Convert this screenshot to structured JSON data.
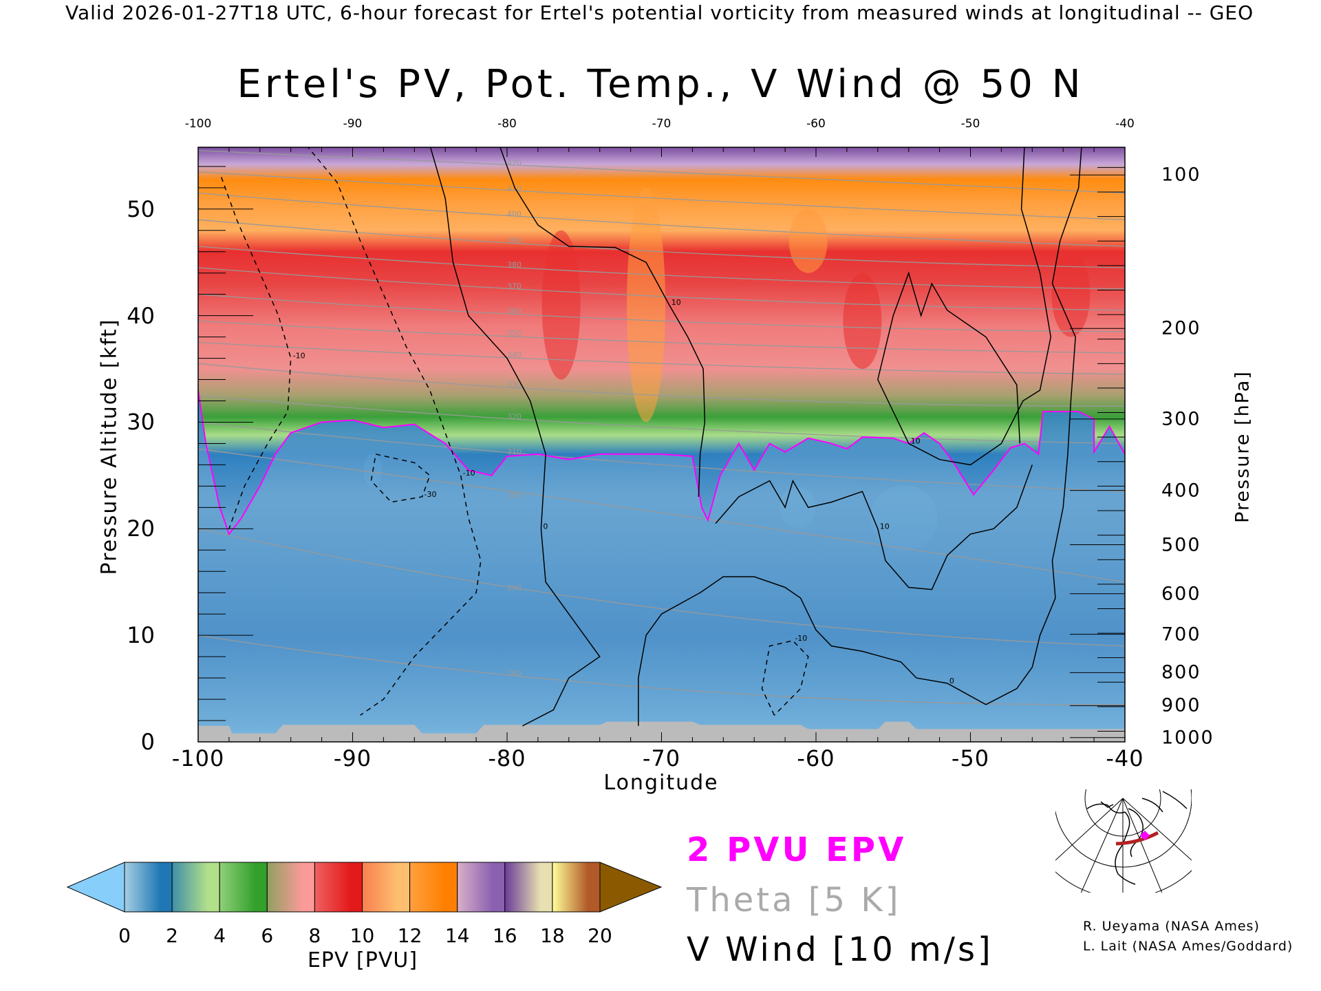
{
  "header": "Valid 2026-01-27T18 UTC, 6-hour forecast for Ertel's potential vorticity from measured winds at longitudinal -- GEO",
  "legend": {
    "pv": "2 PVU EPV",
    "theta": "Theta [5 K]",
    "wind": "V Wind [10 m/s]"
  },
  "credits": [
    "R. Ueyama (NASA Ames)",
    "L. Lait (NASA Ames/Goddard)"
  ],
  "colors": {
    "pv_line": "#ff00ff",
    "theta_line": "#999999",
    "wind_line": "#000000",
    "ground": "#bbbbbb"
  },
  "chart_data": {
    "type": "heatmap",
    "title": "Ertel's PV, Pot. Temp., V Wind @ 50 N",
    "xlabel": "Longitude",
    "ylabel": "Pressure Altitude [kft]",
    "y2label": "Pressure [hPa]",
    "xlim": [
      -100,
      -40
    ],
    "ylim": [
      0,
      55.8
    ],
    "x_ticks": [
      "-100",
      "-90",
      "-80",
      "-70",
      "-60",
      "-50",
      "-40"
    ],
    "x_tick_values": [
      -100,
      -90,
      -80,
      -70,
      -60,
      -50,
      -40
    ],
    "y_ticks": [
      "0",
      "10",
      "20",
      "30",
      "40",
      "50"
    ],
    "y_tick_values": [
      0,
      10,
      20,
      30,
      40,
      50
    ],
    "pressure_ticks": [
      {
        "label": "100",
        "kft": 53.2
      },
      {
        "label": "200",
        "kft": 38.8
      },
      {
        "label": "300",
        "kft": 30.3
      },
      {
        "label": "400",
        "kft": 23.6
      },
      {
        "label": "500",
        "kft": 18.5
      },
      {
        "label": "600",
        "kft": 13.9
      },
      {
        "label": "700",
        "kft": 10.1
      },
      {
        "label": "800",
        "kft": 6.5
      },
      {
        "label": "900",
        "kft": 3.4
      },
      {
        "label": "1000",
        "kft": 0.4
      }
    ],
    "colorbar": {
      "label": "EPV [PVU]",
      "ticks": [
        "0",
        "2",
        "4",
        "6",
        "8",
        "10",
        "12",
        "14",
        "16",
        "18",
        "20"
      ],
      "under_color": "#87cefa",
      "over_color": "#8b5a00",
      "segments": [
        [
          "#a6cee3",
          "#1f78b4"
        ],
        [
          "#3f8fa8",
          "#b2df8a"
        ],
        [
          "#8fd07a",
          "#33a02c"
        ],
        [
          "#90a060",
          "#fb9a99"
        ],
        [
          "#f06060",
          "#e31a1c"
        ],
        [
          "#f88050",
          "#fdbf6f"
        ],
        [
          "#ffa040",
          "#ff7f00"
        ],
        [
          "#d8b0c8",
          "#8a60b0"
        ],
        [
          "#6a3d9a",
          "#e8e0b0"
        ],
        [
          "#ffff99",
          "#b15928"
        ]
      ]
    },
    "epv_bands": [
      {
        "kft": 55.8,
        "color": "#7b4fa0"
      },
      {
        "kft": 54.2,
        "color": "#c8a8d8"
      },
      {
        "kft": 52.8,
        "color": "#ff8c10"
      },
      {
        "kft": 50.5,
        "color": "#ffa040"
      },
      {
        "kft": 48.0,
        "color": "#ffb060"
      },
      {
        "kft": 46.0,
        "color": "#e83030"
      },
      {
        "kft": 43.0,
        "color": "#e84545"
      },
      {
        "kft": 39.0,
        "color": "#f07c7c"
      },
      {
        "kft": 35.0,
        "color": "#f09090"
      },
      {
        "kft": 32.5,
        "color": "#a8a070"
      },
      {
        "kft": 30.5,
        "color": "#3aa03a"
      },
      {
        "kft": 28.8,
        "color": "#a8dc88"
      },
      {
        "kft": 27.0,
        "color": "#2f80c0"
      },
      {
        "kft": 20.0,
        "color": "#6aa4d0"
      },
      {
        "kft": 10.0,
        "color": "#5a98cc"
      },
      {
        "kft": 3.0,
        "color": "#4a8cc8"
      },
      {
        "kft": 0.0,
        "color": "#7ab4dc"
      }
    ],
    "pv2_line": [
      [
        -100,
        33
      ],
      [
        -99.5,
        28
      ],
      [
        -98.6,
        22
      ],
      [
        -98,
        19.5
      ],
      [
        -97.2,
        21
      ],
      [
        -96,
        24
      ],
      [
        -95,
        27
      ],
      [
        -94,
        29
      ],
      [
        -92,
        30
      ],
      [
        -90,
        30.2
      ],
      [
        -88,
        29.5
      ],
      [
        -86,
        29.8
      ],
      [
        -84,
        28
      ],
      [
        -82.5,
        25.5
      ],
      [
        -81,
        25
      ],
      [
        -80,
        26.8
      ],
      [
        -78,
        27
      ],
      [
        -76,
        26.5
      ],
      [
        -74,
        27
      ],
      [
        -70,
        27
      ],
      [
        -68,
        26.8
      ],
      [
        -67.4,
        22
      ],
      [
        -67,
        20.8
      ],
      [
        -66.2,
        25
      ],
      [
        -65,
        28
      ],
      [
        -64,
        25.5
      ],
      [
        -63,
        28
      ],
      [
        -62,
        27.2
      ],
      [
        -60.5,
        28.5
      ],
      [
        -59,
        28
      ],
      [
        -58,
        27.5
      ],
      [
        -57,
        28.6
      ],
      [
        -55,
        28.5
      ],
      [
        -54,
        28
      ],
      [
        -53,
        29
      ],
      [
        -52,
        28
      ],
      [
        -51,
        26
      ],
      [
        -49.8,
        23.2
      ],
      [
        -48.5,
        25.5
      ],
      [
        -47.4,
        27.6
      ],
      [
        -46.5,
        28
      ],
      [
        -45.6,
        27
      ],
      [
        -45.3,
        31
      ],
      [
        -43,
        31
      ],
      [
        -42,
        30.3
      ],
      [
        -42,
        27.2
      ],
      [
        -41,
        29.6
      ],
      [
        -40,
        27
      ]
    ],
    "theta_isentropes": [
      {
        "theta": 420,
        "alt": [
          55.5,
          53.5,
          51.5
        ]
      },
      {
        "theta": 410,
        "alt": [
          53.5,
          51.0,
          49.0
        ]
      },
      {
        "theta": 400,
        "alt": [
          51.5,
          48.5,
          46.5
        ]
      },
      {
        "theta": 390,
        "alt": [
          49.0,
          46.0,
          44.5
        ]
      },
      {
        "theta": 380,
        "alt": [
          46.5,
          43.8,
          42.5
        ]
      },
      {
        "theta": 370,
        "alt": [
          44.5,
          41.8,
          40.5
        ]
      },
      {
        "theta": 360,
        "alt": [
          42.0,
          39.5,
          38.5
        ]
      },
      {
        "theta": 350,
        "alt": [
          39.5,
          37.5,
          36.5
        ]
      },
      {
        "theta": 340,
        "alt": [
          37.5,
          35.5,
          34.5
        ]
      },
      {
        "theta": 330,
        "alt": [
          35.5,
          32.5,
          31.5
        ]
      },
      {
        "theta": 320,
        "alt": [
          32.5,
          29.5,
          28.0
        ]
      },
      {
        "theta": 310,
        "alt": [
          30.0,
          26.0,
          23.5
        ]
      },
      {
        "theta": 300,
        "alt": [
          27.5,
          21.5,
          15.0
        ]
      },
      {
        "theta": 290,
        "alt": [
          20.0,
          12.5,
          9.0
        ]
      },
      {
        "theta": 280,
        "alt": [
          10.0,
          5.0,
          3.5
        ]
      }
    ],
    "v_wind_contours": [
      {
        "level": 0,
        "dashed": false,
        "points": [
          [
            -85,
            56
          ],
          [
            -84,
            51
          ],
          [
            -83.5,
            45
          ],
          [
            -82.5,
            40
          ],
          [
            -80,
            36
          ],
          [
            -78.5,
            32
          ],
          [
            -77.5,
            27
          ],
          [
            -77.8,
            20
          ],
          [
            -77.5,
            15
          ],
          [
            -76,
            12
          ],
          [
            -75,
            10
          ],
          [
            -74,
            8
          ],
          [
            -76,
            6
          ],
          [
            -77,
            3
          ],
          [
            -79,
            1.5
          ]
        ]
      },
      {
        "level": 10,
        "dashed": false,
        "points": [
          [
            -80.5,
            56
          ],
          [
            -79.5,
            52
          ],
          [
            -78,
            48.5
          ],
          [
            -76,
            46.5
          ],
          [
            -73,
            46.4
          ],
          [
            -71,
            45
          ],
          [
            -69.5,
            41
          ],
          [
            -68.3,
            38
          ],
          [
            -67.3,
            35
          ],
          [
            -67.2,
            30
          ],
          [
            -67.5,
            27
          ],
          [
            -67.6,
            23
          ]
        ]
      },
      {
        "level": 0,
        "dashed": false,
        "points": [
          [
            -71.5,
            1.5
          ],
          [
            -71.5,
            6
          ],
          [
            -71,
            10
          ],
          [
            -70,
            12
          ],
          [
            -67.5,
            14
          ],
          [
            -66,
            15.5
          ],
          [
            -64,
            15.5
          ],
          [
            -62,
            14.5
          ],
          [
            -61,
            13.5
          ],
          [
            -60,
            10.5
          ],
          [
            -59,
            9
          ],
          [
            -57,
            8.5
          ],
          [
            -54.5,
            7.5
          ],
          [
            -53.5,
            6
          ],
          [
            -51.5,
            5.5
          ],
          [
            -49,
            3.5
          ],
          [
            -47,
            5
          ],
          [
            -46,
            7
          ],
          [
            -45.5,
            10
          ],
          [
            -44.5,
            13.5
          ],
          [
            -44.7,
            17
          ],
          [
            -44,
            22
          ],
          [
            -43.7,
            27
          ],
          [
            -43.5,
            32
          ],
          [
            -43.2,
            38
          ],
          [
            -44.7,
            43
          ],
          [
            -44.2,
            47
          ],
          [
            -43,
            52
          ],
          [
            -42.8,
            56
          ]
        ]
      },
      {
        "level": 10,
        "dashed": false,
        "points": [
          [
            -46.5,
            56
          ],
          [
            -46.7,
            50
          ],
          [
            -45.5,
            44
          ],
          [
            -44.8,
            38
          ],
          [
            -45.5,
            33
          ],
          [
            -46.6,
            32
          ],
          [
            -48,
            28
          ],
          [
            -50,
            26
          ],
          [
            -52,
            26.5
          ],
          [
            -54,
            28
          ],
          [
            -56,
            34
          ],
          [
            -55,
            40
          ],
          [
            -54,
            44
          ],
          [
            -53.2,
            40
          ],
          [
            -52.5,
            43
          ],
          [
            -51.5,
            40.5
          ],
          [
            -49,
            38
          ],
          [
            -47,
            33.5
          ],
          [
            -46.8,
            28
          ]
        ]
      },
      {
        "level": 10,
        "dashed": false,
        "points": [
          [
            -66.5,
            20.5
          ],
          [
            -65,
            23
          ],
          [
            -63,
            24.5
          ],
          [
            -62,
            22
          ],
          [
            -61.5,
            24.5
          ],
          [
            -60.5,
            22
          ],
          [
            -59,
            22.5
          ],
          [
            -57,
            23.5
          ],
          [
            -56,
            20
          ],
          [
            -55.5,
            17
          ],
          [
            -54,
            14.5
          ],
          [
            -52.5,
            14.3
          ],
          [
            -51.5,
            17.5
          ],
          [
            -50,
            19.5
          ],
          [
            -48.5,
            20
          ],
          [
            -47,
            22
          ],
          [
            -46,
            26
          ]
        ]
      },
      {
        "level": -10,
        "dashed": true,
        "points": [
          [
            -98.5,
            53
          ],
          [
            -97.5,
            49
          ],
          [
            -96,
            44
          ],
          [
            -94.8,
            40
          ],
          [
            -94,
            36
          ],
          [
            -94.2,
            31
          ],
          [
            -95.5,
            28
          ],
          [
            -97,
            24
          ],
          [
            -98,
            20
          ]
        ]
      },
      {
        "level": -10,
        "dashed": true,
        "points": [
          [
            -93,
            56
          ],
          [
            -91,
            52.5
          ],
          [
            -89.5,
            47
          ],
          [
            -88,
            42
          ],
          [
            -86.5,
            37
          ],
          [
            -85,
            33
          ],
          [
            -84,
            29
          ],
          [
            -83,
            25
          ],
          [
            -82.5,
            21
          ],
          [
            -81.7,
            17
          ],
          [
            -82,
            14
          ],
          [
            -84,
            11
          ],
          [
            -86,
            8
          ],
          [
            -88,
            4
          ],
          [
            -89.5,
            2.5
          ]
        ]
      },
      {
        "level": -30,
        "dashed": true,
        "points": [
          [
            -88.5,
            27
          ],
          [
            -86,
            26.2
          ],
          [
            -85,
            25
          ],
          [
            -85.5,
            23
          ],
          [
            -87.5,
            22.5
          ],
          [
            -88.8,
            24.5
          ],
          [
            -88.5,
            27
          ]
        ]
      },
      {
        "level": -10,
        "dashed": true,
        "points": [
          [
            -62.7,
            2.5
          ],
          [
            -63.5,
            5
          ],
          [
            -63,
            9
          ],
          [
            -61.5,
            9.5
          ],
          [
            -60.5,
            8
          ],
          [
            -61,
            5
          ],
          [
            -62.7,
            2.5
          ]
        ]
      }
    ],
    "ground": [
      [
        -100,
        1.5
      ],
      [
        -98,
        1.5
      ],
      [
        -97.8,
        0.8
      ],
      [
        -95,
        0.8
      ],
      [
        -94.5,
        1.6
      ],
      [
        -86,
        1.6
      ],
      [
        -85.5,
        0.8
      ],
      [
        -82,
        0.8
      ],
      [
        -81.5,
        1.6
      ],
      [
        -74,
        1.6
      ],
      [
        -73.5,
        1.9
      ],
      [
        -68,
        1.9
      ],
      [
        -67.5,
        1.6
      ],
      [
        -61,
        1.6
      ],
      [
        -60.5,
        1.2
      ],
      [
        -56,
        1.2
      ],
      [
        -55.5,
        1.9
      ],
      [
        -54,
        1.9
      ],
      [
        -53.5,
        1.2
      ],
      [
        -40,
        1.2
      ]
    ]
  }
}
